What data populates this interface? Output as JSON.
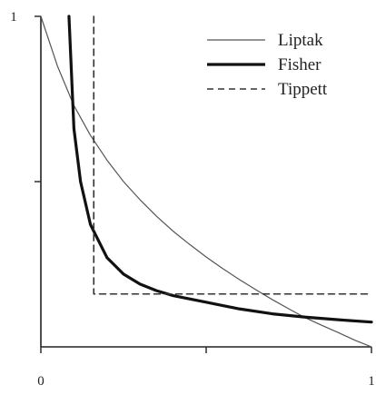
{
  "chart_data": {
    "type": "line",
    "title": "",
    "xlabel": "",
    "ylabel": "",
    "xlim": [
      0,
      1
    ],
    "ylim": [
      0,
      1
    ],
    "x_ticks": [
      {
        "value": 0,
        "label": "0"
      },
      {
        "value": 0.5,
        "label": ""
      },
      {
        "value": 1,
        "label": "1"
      }
    ],
    "y_ticks": [
      {
        "value": 1,
        "label": "1"
      },
      {
        "value": 0.5,
        "label": ""
      }
    ],
    "grid": false,
    "legend_position": "top-right",
    "series": [
      {
        "name": "Liptak",
        "style": "thin",
        "color": "#555555",
        "x": [
          0,
          0.05,
          0.1,
          0.15,
          0.2,
          0.25,
          0.3,
          0.35,
          0.4,
          0.45,
          0.5,
          0.55,
          0.6,
          0.65,
          0.7,
          0.75,
          0.8,
          0.85,
          0.9,
          0.95,
          1
        ],
        "y": [
          1,
          0.85,
          0.73,
          0.64,
          0.565,
          0.5,
          0.445,
          0.395,
          0.35,
          0.31,
          0.272,
          0.237,
          0.204,
          0.173,
          0.143,
          0.115,
          0.088,
          0.065,
          0.043,
          0.02,
          0
        ]
      },
      {
        "name": "Fisher",
        "style": "thick",
        "color": "#111111",
        "x": [
          0.085,
          0.1,
          0.12,
          0.15,
          0.2,
          0.25,
          0.3,
          0.35,
          0.4,
          0.45,
          0.5,
          0.6,
          0.7,
          0.8,
          0.9,
          1
        ],
        "y": [
          1,
          0.66,
          0.5,
          0.37,
          0.27,
          0.22,
          0.19,
          0.17,
          0.155,
          0.145,
          0.135,
          0.115,
          0.1,
          0.09,
          0.082,
          0.075
        ]
      },
      {
        "name": "Tippett",
        "style": "dashed",
        "color": "#333333",
        "x": [
          0.16,
          0.16,
          1
        ],
        "y": [
          1,
          0.16,
          0.16
        ]
      }
    ]
  }
}
